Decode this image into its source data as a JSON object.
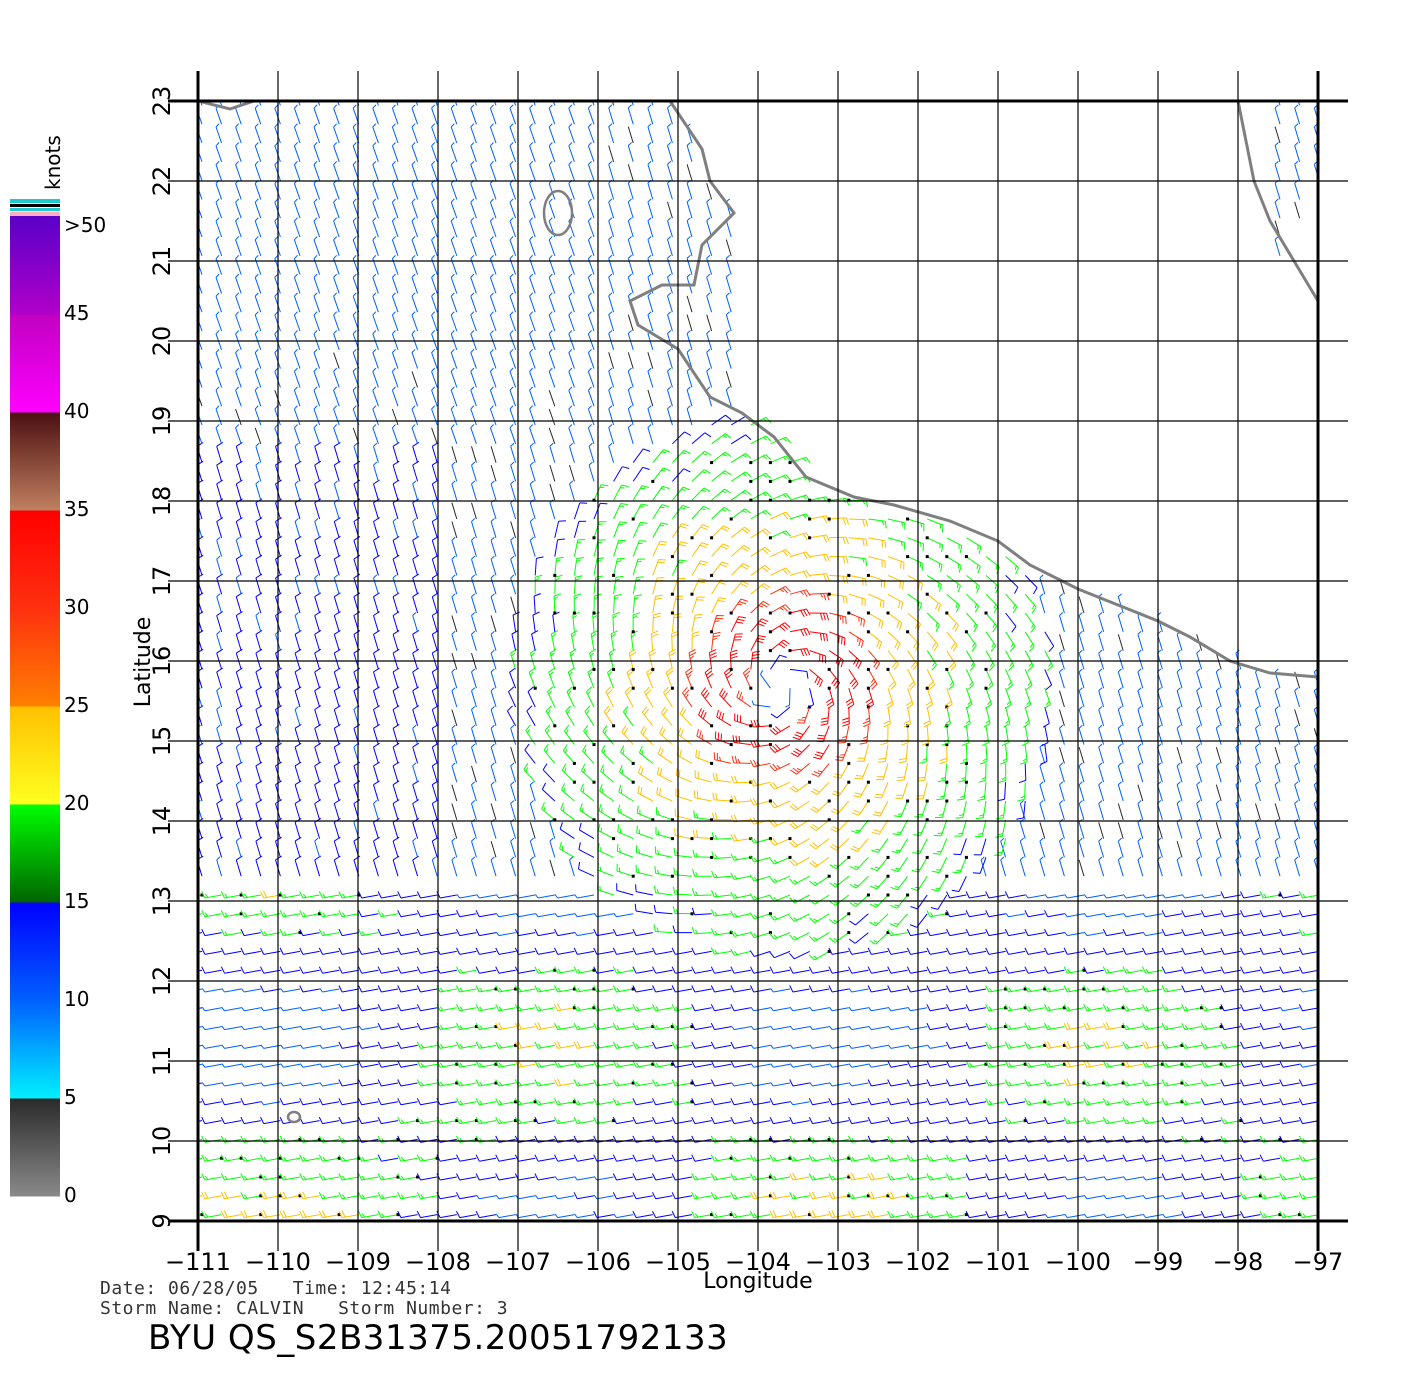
{
  "map": {
    "lon_range": [
      -111,
      -97
    ],
    "lat_range": [
      9,
      23
    ],
    "lon_ticks": [
      -111,
      -110,
      -109,
      -108,
      -107,
      -106,
      -105,
      -104,
      -103,
      -102,
      -101,
      -100,
      -99,
      -98,
      -97
    ],
    "lat_ticks": [
      9,
      10,
      11,
      12,
      13,
      14,
      15,
      16,
      17,
      18,
      19,
      20,
      21,
      22,
      23
    ],
    "xlabel": "Longitude",
    "ylabel": "Latitude",
    "grid": true,
    "coastline_color": "#7f7f7f",
    "field": "ocean surface wind vectors (barbs)",
    "storm_center": {
      "lon": -103.7,
      "lat": 15.7
    }
  },
  "colorbar": {
    "unit_label": "knots",
    "top_label": ">50",
    "tick_labels": [
      "0",
      "5",
      "10",
      "15",
      "20",
      "25",
      "30",
      "35",
      "40",
      "45"
    ],
    "bands": [
      {
        "min": 0,
        "max": 5,
        "color_from": "#8a8a8a",
        "color_to": "#2a2a2a"
      },
      {
        "min": 5,
        "max": 10,
        "color_from": "#00f0ff",
        "color_to": "#0060ff"
      },
      {
        "min": 10,
        "max": 15,
        "color_from": "#0060ff",
        "color_to": "#0000ff"
      },
      {
        "min": 15,
        "max": 20,
        "color_from": "#006400",
        "color_to": "#00ff00"
      },
      {
        "min": 20,
        "max": 25,
        "color_from": "#ffff20",
        "color_to": "#ffc000"
      },
      {
        "min": 25,
        "max": 30,
        "color_from": "#ff8000",
        "color_to": "#ff3010"
      },
      {
        "min": 30,
        "max": 35,
        "color_from": "#ff3010",
        "color_to": "#ff0000"
      },
      {
        "min": 35,
        "max": 40,
        "color_from": "#c08060",
        "color_to": "#4a1010"
      },
      {
        "min": 40,
        "max": 45,
        "color_from": "#ff00ff",
        "color_to": "#c000c0"
      },
      {
        "min": 45,
        "max": 50,
        "color_from": "#b000c8",
        "color_to": "#5a00c8"
      }
    ]
  },
  "info": {
    "line1": "Date: 06/28/05   Time: 12:45:14",
    "line2": "Storm Name: CALVIN   Storm Number: 3",
    "product": "BYU QS_S2B31375.20051792133"
  }
}
